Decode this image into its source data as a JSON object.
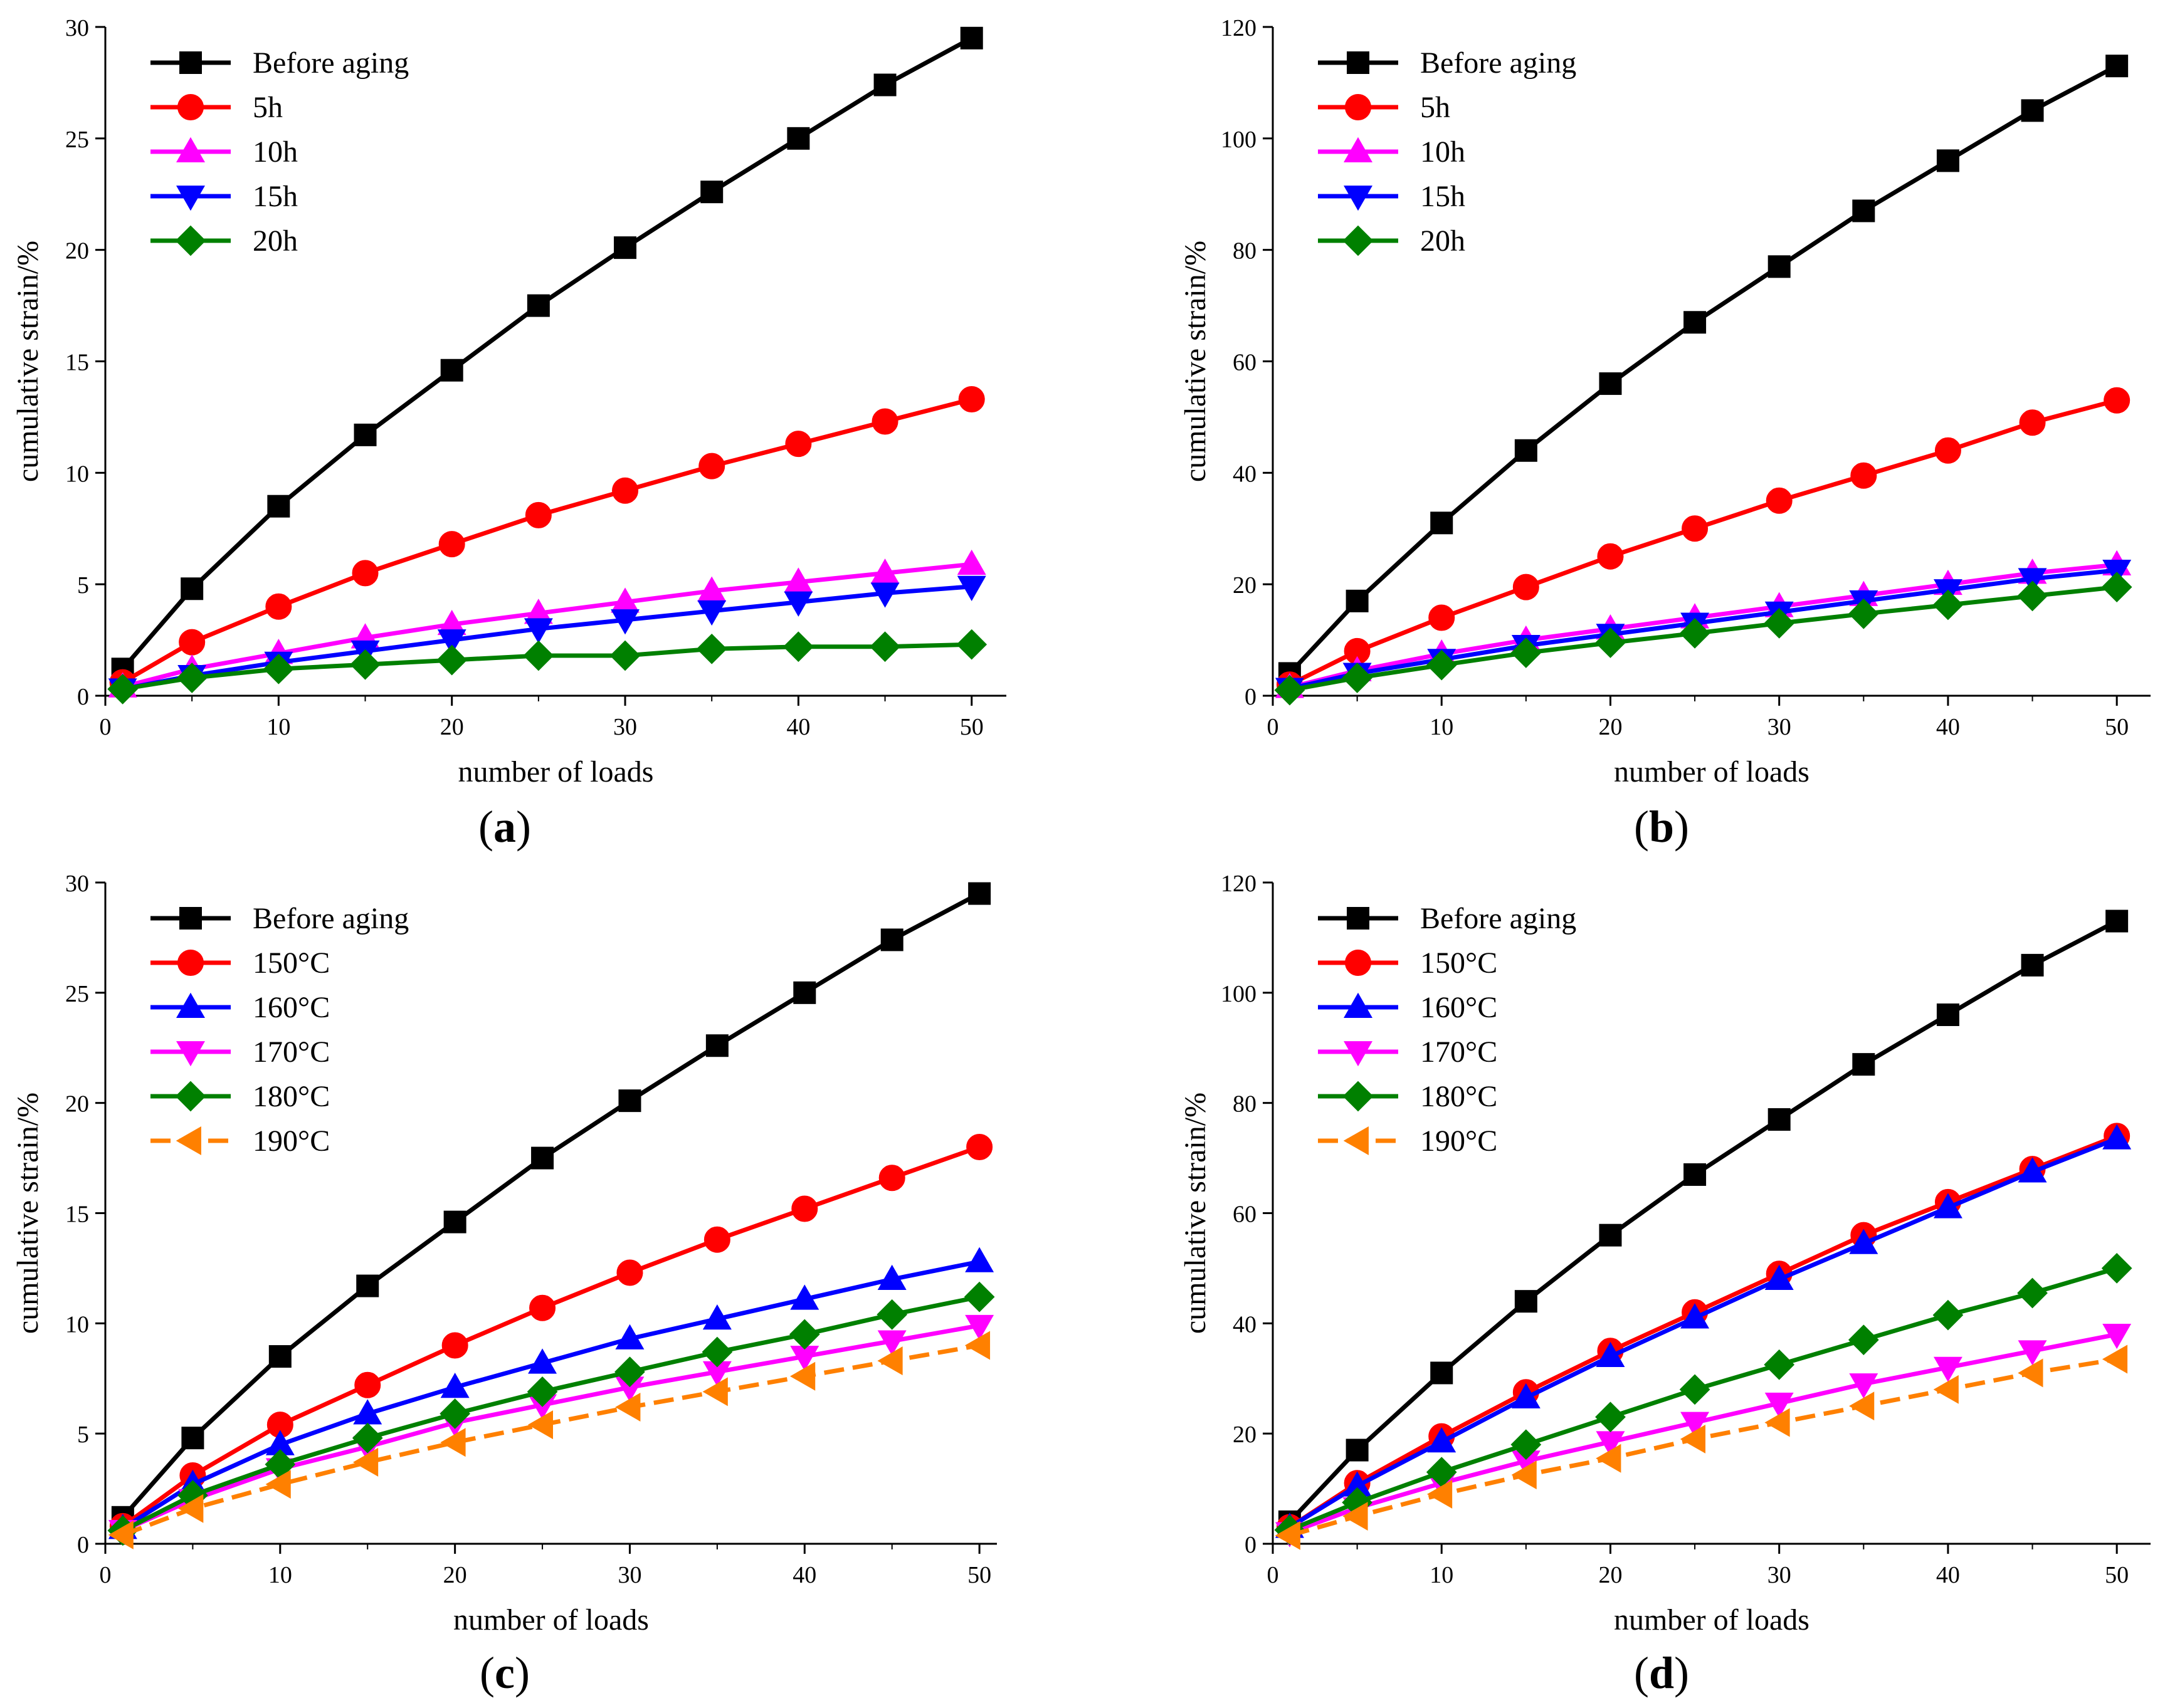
{
  "colors": {
    "black": "#000000",
    "red": "#ff0000",
    "magenta": "#ff00ff",
    "blue": "#0000ff",
    "green": "#008000",
    "orange": "#ff8000"
  },
  "chart_data": [
    {
      "panel_label": "(a)",
      "panel_letter": "a",
      "type": "line",
      "xlabel": "number of loads",
      "ylabel": "cumulative strain/%",
      "xlim": [
        0,
        52
      ],
      "ylim": [
        0,
        30
      ],
      "xticks": [
        0,
        10,
        20,
        30,
        40,
        50
      ],
      "yticks": [
        0,
        5,
        10,
        15,
        20,
        25,
        30
      ],
      "legend_position": "top-left",
      "x": [
        1,
        5,
        10,
        15,
        20,
        25,
        30,
        35,
        40,
        45,
        50
      ],
      "series": [
        {
          "name": "Before aging",
          "color": "black",
          "marker": "square",
          "dash": false,
          "values": [
            1.2,
            4.8,
            8.5,
            11.7,
            14.6,
            17.5,
            20.1,
            22.6,
            25.0,
            27.4,
            29.5
          ]
        },
        {
          "name": "5h",
          "color": "red",
          "marker": "circle",
          "dash": false,
          "values": [
            0.6,
            2.4,
            4.0,
            5.5,
            6.8,
            8.1,
            9.2,
            10.3,
            11.3,
            12.3,
            13.3
          ]
        },
        {
          "name": "10h",
          "color": "magenta",
          "marker": "triangle-up",
          "dash": false,
          "values": [
            0.4,
            1.2,
            1.9,
            2.6,
            3.2,
            3.7,
            4.2,
            4.7,
            5.1,
            5.5,
            5.9
          ]
        },
        {
          "name": "15h",
          "color": "blue",
          "marker": "triangle-down",
          "dash": false,
          "values": [
            0.3,
            0.9,
            1.5,
            2.0,
            2.5,
            3.0,
            3.4,
            3.8,
            4.2,
            4.6,
            4.9
          ]
        },
        {
          "name": "20h",
          "color": "green",
          "marker": "diamond",
          "dash": false,
          "values": [
            0.3,
            0.8,
            1.2,
            1.4,
            1.6,
            1.8,
            1.8,
            2.1,
            2.2,
            2.2,
            2.3
          ]
        }
      ]
    },
    {
      "panel_label": "(b)",
      "panel_letter": "b",
      "type": "line",
      "xlabel": "number of loads",
      "ylabel": "cumulative strain/%",
      "xlim": [
        0,
        52
      ],
      "ylim": [
        0,
        120
      ],
      "xticks": [
        0,
        10,
        20,
        30,
        40,
        50
      ],
      "yticks": [
        0,
        20,
        40,
        60,
        80,
        100,
        120
      ],
      "legend_position": "top-left",
      "x": [
        1,
        5,
        10,
        15,
        20,
        25,
        30,
        35,
        40,
        45,
        50
      ],
      "series": [
        {
          "name": "Before aging",
          "color": "black",
          "marker": "square",
          "dash": false,
          "values": [
            4,
            17,
            31,
            44,
            56,
            67,
            77,
            87,
            96,
            105,
            113
          ]
        },
        {
          "name": "5h",
          "color": "red",
          "marker": "circle",
          "dash": false,
          "values": [
            2,
            8,
            14,
            19.5,
            25,
            30,
            35,
            39.5,
            44,
            49,
            53
          ]
        },
        {
          "name": "10h",
          "color": "magenta",
          "marker": "triangle-up",
          "dash": false,
          "values": [
            1.5,
            4.5,
            7.5,
            10,
            12,
            14,
            16,
            18,
            20,
            22,
            23.5
          ]
        },
        {
          "name": "15h",
          "color": "blue",
          "marker": "triangle-down",
          "dash": false,
          "values": [
            1.3,
            4,
            6.5,
            9,
            11,
            13,
            15,
            17,
            19,
            21,
            22.5
          ]
        },
        {
          "name": "20h",
          "color": "green",
          "marker": "diamond",
          "dash": false,
          "values": [
            1,
            3.2,
            5.5,
            7.7,
            9.5,
            11.2,
            13,
            14.7,
            16.3,
            17.9,
            19.5
          ]
        }
      ]
    },
    {
      "panel_label": "(c)",
      "panel_letter": "c",
      "type": "line",
      "xlabel": "number of loads",
      "ylabel": "cumulative strain/%",
      "xlim": [
        0,
        51
      ],
      "ylim": [
        0,
        30
      ],
      "xticks": [
        0,
        10,
        20,
        30,
        40,
        50
      ],
      "yticks": [
        0,
        5,
        10,
        15,
        20,
        25,
        30
      ],
      "legend_position": "top-left",
      "x": [
        1,
        5,
        10,
        15,
        20,
        25,
        30,
        35,
        40,
        45,
        50
      ],
      "series": [
        {
          "name": "Before aging",
          "color": "black",
          "marker": "square",
          "dash": false,
          "values": [
            1.2,
            4.8,
            8.5,
            11.7,
            14.6,
            17.5,
            20.1,
            22.6,
            25.0,
            27.4,
            29.5
          ]
        },
        {
          "name": "150°C",
          "color": "red",
          "marker": "circle",
          "dash": false,
          "values": [
            0.8,
            3.1,
            5.4,
            7.2,
            9.0,
            10.7,
            12.3,
            13.8,
            15.2,
            16.6,
            18.0
          ]
        },
        {
          "name": "160°C",
          "color": "blue",
          "marker": "triangle-up",
          "dash": false,
          "values": [
            0.7,
            2.7,
            4.5,
            5.9,
            7.1,
            8.2,
            9.3,
            10.2,
            11.1,
            12.0,
            12.8
          ]
        },
        {
          "name": "170°C",
          "color": "magenta",
          "marker": "triangle-down",
          "dash": false,
          "values": [
            0.6,
            2.0,
            3.4,
            4.4,
            5.5,
            6.3,
            7.1,
            7.8,
            8.5,
            9.2,
            9.9
          ]
        },
        {
          "name": "180°C",
          "color": "green",
          "marker": "diamond",
          "dash": false,
          "values": [
            0.6,
            2.2,
            3.6,
            4.8,
            5.9,
            6.9,
            7.8,
            8.7,
            9.5,
            10.4,
            11.2
          ]
        },
        {
          "name": "190°C",
          "color": "orange",
          "marker": "triangle-left",
          "dash": true,
          "values": [
            0.4,
            1.6,
            2.7,
            3.7,
            4.6,
            5.4,
            6.2,
            6.9,
            7.6,
            8.3,
            9.0
          ]
        }
      ]
    },
    {
      "panel_label": "(d)",
      "panel_letter": "d",
      "type": "line",
      "xlabel": "number of loads",
      "ylabel": "cumulative strain/%",
      "xlim": [
        0,
        52
      ],
      "ylim": [
        0,
        120
      ],
      "xticks": [
        0,
        10,
        20,
        30,
        40,
        50
      ],
      "yticks": [
        0,
        20,
        40,
        60,
        80,
        100,
        120
      ],
      "legend_position": "top-left",
      "x": [
        1,
        5,
        10,
        15,
        20,
        25,
        30,
        35,
        40,
        45,
        50
      ],
      "series": [
        {
          "name": "Before aging",
          "color": "black",
          "marker": "square",
          "dash": false,
          "values": [
            4,
            17,
            31,
            44,
            56,
            67,
            77,
            87,
            96,
            105,
            113
          ]
        },
        {
          "name": "150°C",
          "color": "red",
          "marker": "circle",
          "dash": false,
          "values": [
            3,
            11,
            19.5,
            27.5,
            35,
            42,
            49,
            56,
            62,
            68,
            74
          ]
        },
        {
          "name": "160°C",
          "color": "blue",
          "marker": "triangle-up",
          "dash": false,
          "values": [
            3,
            10.5,
            18.5,
            26.5,
            34,
            41,
            48,
            54.5,
            61,
            67.5,
            73.5
          ]
        },
        {
          "name": "170°C",
          "color": "magenta",
          "marker": "triangle-down",
          "dash": false,
          "values": [
            2,
            6.5,
            11,
            15,
            18.5,
            22,
            25.5,
            29,
            32,
            35,
            38
          ]
        },
        {
          "name": "180°C",
          "color": "green",
          "marker": "diamond",
          "dash": false,
          "values": [
            2.5,
            7.5,
            13,
            18,
            23,
            28,
            32.5,
            37,
            41.5,
            45.5,
            50
          ]
        },
        {
          "name": "190°C",
          "color": "orange",
          "marker": "triangle-left",
          "dash": true,
          "values": [
            1.5,
            5,
            9,
            12.5,
            15.5,
            19,
            22,
            25,
            28,
            31,
            33.5
          ]
        }
      ]
    }
  ]
}
